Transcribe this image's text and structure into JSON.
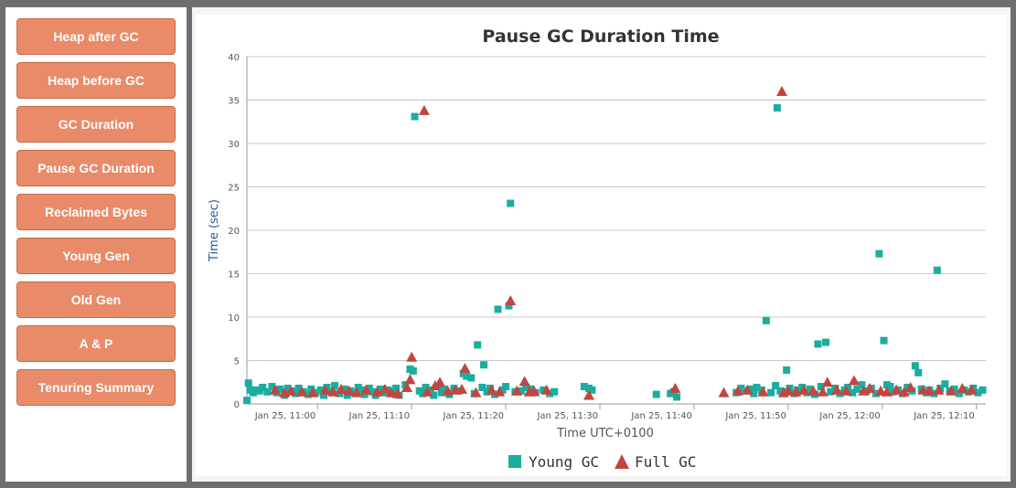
{
  "sidebar": {
    "items": [
      {
        "label": "Heap after GC"
      },
      {
        "label": "Heap before GC"
      },
      {
        "label": "GC Duration"
      },
      {
        "label": "Pause GC Duration"
      },
      {
        "label": "Reclaimed Bytes"
      },
      {
        "label": "Young Gen"
      },
      {
        "label": "Old Gen"
      },
      {
        "label": "A & P"
      },
      {
        "label": "Tenuring Summary"
      }
    ]
  },
  "colors": {
    "button": "#e98b68",
    "young": "#1aada0",
    "full": "#c2463f",
    "ylabel": "#2a5b8c"
  },
  "chart_data": {
    "type": "scatter",
    "title": "Pause GC Duration Time",
    "xlabel": "Time UTC+0100",
    "ylabel": "Time (sec)",
    "ylim": [
      0,
      40
    ],
    "yticks": [
      0,
      5,
      10,
      15,
      20,
      25,
      30,
      35,
      40
    ],
    "xlim": [
      "10:52:30",
      "12:11:00"
    ],
    "xticks": [
      {
        "t": "11:00",
        "label": "Jan 25, 11:00"
      },
      {
        "t": "11:10",
        "label": "Jan 25, 11:10"
      },
      {
        "t": "11:20",
        "label": "Jan 25, 11:20"
      },
      {
        "t": "11:30",
        "label": "Jan 25, 11:30"
      },
      {
        "t": "11:40",
        "label": "Jan 25, 11:40"
      },
      {
        "t": "11:50",
        "label": "Jan 25, 11:50"
      },
      {
        "t": "12:00",
        "label": "Jan 25, 12:00"
      },
      {
        "t": "12:10",
        "label": "Jan 25, 12:10"
      }
    ],
    "grid": true,
    "legend": "bottom",
    "series": [
      {
        "name": "Young GC",
        "marker": "square",
        "points": [
          [
            "10:52:30",
            0.4
          ],
          [
            "10:52:40",
            2.4
          ],
          [
            "10:52:50",
            1.6
          ],
          [
            "10:53:10",
            1.3
          ],
          [
            "10:53:30",
            1.6
          ],
          [
            "10:53:50",
            1.5
          ],
          [
            "10:54:10",
            1.9
          ],
          [
            "10:54:40",
            1.4
          ],
          [
            "10:55:10",
            2.0
          ],
          [
            "10:55:40",
            1.3
          ],
          [
            "10:56:00",
            1.7
          ],
          [
            "10:56:30",
            1.0
          ],
          [
            "10:56:50",
            1.8
          ],
          [
            "10:57:20",
            1.5
          ],
          [
            "10:57:40",
            1.2
          ],
          [
            "10:58:00",
            1.8
          ],
          [
            "10:58:30",
            1.4
          ],
          [
            "10:59:00",
            1.1
          ],
          [
            "10:59:20",
            1.7
          ],
          [
            "10:59:50",
            1.3
          ],
          [
            "11:00:20",
            1.6
          ],
          [
            "11:00:40",
            1.0
          ],
          [
            "11:01:00",
            1.9
          ],
          [
            "11:01:30",
            1.4
          ],
          [
            "11:01:50",
            2.1
          ],
          [
            "11:02:20",
            1.2
          ],
          [
            "11:02:50",
            1.7
          ],
          [
            "11:03:10",
            1.0
          ],
          [
            "11:03:30",
            1.5
          ],
          [
            "11:04:00",
            1.3
          ],
          [
            "11:04:20",
            1.9
          ],
          [
            "11:04:40",
            1.6
          ],
          [
            "11:05:00",
            1.1
          ],
          [
            "11:05:30",
            1.8
          ],
          [
            "11:05:50",
            1.4
          ],
          [
            "11:06:10",
            1.0
          ],
          [
            "11:06:40",
            1.7
          ],
          [
            "11:07:00",
            1.3
          ],
          [
            "11:07:30",
            1.6
          ],
          [
            "11:08:00",
            1.2
          ],
          [
            "11:08:20",
            1.8
          ],
          [
            "11:08:40",
            1.0
          ],
          [
            "11:09:20",
            2.2
          ],
          [
            "11:09:50",
            4.0
          ],
          [
            "11:10:10",
            3.8
          ],
          [
            "11:10:20",
            33.1
          ],
          [
            "11:10:50",
            1.5
          ],
          [
            "11:11:10",
            1.2
          ],
          [
            "11:11:30",
            1.9
          ],
          [
            "11:12:00",
            1.6
          ],
          [
            "11:12:20",
            1.0
          ],
          [
            "11:12:50",
            2.0
          ],
          [
            "11:13:10",
            1.3
          ],
          [
            "11:13:30",
            1.7
          ],
          [
            "11:14:00",
            1.1
          ],
          [
            "11:14:30",
            1.8
          ],
          [
            "11:15:00",
            1.5
          ],
          [
            "11:15:30",
            3.5
          ],
          [
            "11:15:50",
            3.2
          ],
          [
            "11:16:20",
            3.0
          ],
          [
            "11:16:40",
            1.2
          ],
          [
            "11:17:00",
            6.8
          ],
          [
            "11:17:30",
            1.9
          ],
          [
            "11:17:40",
            4.5
          ],
          [
            "11:18:00",
            1.4
          ],
          [
            "11:18:20",
            1.8
          ],
          [
            "11:18:50",
            1.1
          ],
          [
            "11:19:10",
            10.9
          ],
          [
            "11:19:40",
            1.6
          ],
          [
            "11:20:00",
            2.0
          ],
          [
            "11:20:20",
            11.3
          ],
          [
            "11:20:30",
            23.1
          ],
          [
            "11:21:00",
            1.4
          ],
          [
            "11:21:40",
            1.5
          ],
          [
            "11:22:10",
            1.9
          ],
          [
            "11:22:40",
            1.7
          ],
          [
            "11:23:10",
            1.3
          ],
          [
            "11:24:00",
            1.6
          ],
          [
            "11:24:40",
            1.2
          ],
          [
            "11:25:10",
            1.4
          ],
          [
            "11:28:20",
            2.0
          ],
          [
            "11:28:50",
            1.8
          ],
          [
            "11:29:10",
            1.6
          ],
          [
            "11:36:00",
            1.1
          ],
          [
            "11:37:30",
            1.2
          ],
          [
            "11:37:50",
            1.4
          ],
          [
            "11:38:10",
            0.8
          ],
          [
            "11:44:30",
            1.3
          ],
          [
            "11:45:00",
            1.8
          ],
          [
            "11:45:30",
            1.5
          ],
          [
            "11:46:00",
            1.7
          ],
          [
            "11:46:20",
            1.2
          ],
          [
            "11:46:40",
            1.9
          ],
          [
            "11:47:10",
            1.6
          ],
          [
            "11:47:40",
            9.6
          ],
          [
            "11:48:10",
            1.3
          ],
          [
            "11:48:40",
            2.1
          ],
          [
            "11:48:50",
            34.1
          ],
          [
            "11:49:10",
            1.5
          ],
          [
            "11:49:40",
            1.4
          ],
          [
            "11:49:50",
            3.9
          ],
          [
            "11:50:10",
            1.8
          ],
          [
            "11:50:40",
            1.2
          ],
          [
            "11:51:00",
            1.6
          ],
          [
            "11:51:30",
            1.9
          ],
          [
            "11:52:00",
            1.3
          ],
          [
            "11:52:20",
            1.7
          ],
          [
            "11:52:50",
            1.1
          ],
          [
            "11:53:10",
            6.9
          ],
          [
            "11:53:30",
            2.0
          ],
          [
            "11:54:00",
            7.1
          ],
          [
            "11:54:30",
            1.4
          ],
          [
            "11:55:00",
            1.8
          ],
          [
            "11:55:30",
            1.2
          ],
          [
            "11:56:00",
            1.6
          ],
          [
            "11:56:20",
            1.9
          ],
          [
            "11:56:50",
            1.3
          ],
          [
            "11:57:20",
            1.7
          ],
          [
            "11:57:50",
            2.2
          ],
          [
            "11:58:20",
            1.5
          ],
          [
            "11:58:50",
            1.8
          ],
          [
            "11:59:20",
            1.2
          ],
          [
            "11:59:40",
            17.3
          ],
          [
            "12:00:10",
            7.3
          ],
          [
            "12:00:30",
            2.2
          ],
          [
            "12:00:50",
            2.0
          ],
          [
            "12:01:10",
            1.4
          ],
          [
            "12:01:40",
            1.6
          ],
          [
            "12:02:10",
            1.2
          ],
          [
            "12:02:40",
            1.9
          ],
          [
            "12:03:10",
            1.5
          ],
          [
            "12:03:30",
            4.4
          ],
          [
            "12:03:50",
            3.6
          ],
          [
            "12:04:10",
            1.7
          ],
          [
            "12:04:40",
            1.3
          ],
          [
            "12:05:00",
            1.6
          ],
          [
            "12:05:30",
            1.2
          ],
          [
            "12:05:50",
            15.4
          ],
          [
            "12:06:10",
            1.8
          ],
          [
            "12:06:40",
            2.3
          ],
          [
            "12:07:10",
            1.5
          ],
          [
            "12:07:40",
            1.7
          ],
          [
            "12:08:10",
            1.2
          ],
          [
            "12:08:40",
            1.6
          ],
          [
            "12:09:10",
            1.4
          ],
          [
            "12:09:40",
            1.8
          ],
          [
            "12:10:10",
            1.3
          ],
          [
            "12:10:40",
            1.6
          ]
        ]
      },
      {
        "name": "Full GC",
        "marker": "triangle",
        "points": [
          [
            "10:55:30",
            1.6
          ],
          [
            "10:56:30",
            1.3
          ],
          [
            "10:57:10",
            1.5
          ],
          [
            "10:58:20",
            1.4
          ],
          [
            "10:59:30",
            1.3
          ],
          [
            "11:00:50",
            1.6
          ],
          [
            "11:01:40",
            1.4
          ],
          [
            "11:02:30",
            1.7
          ],
          [
            "11:03:20",
            1.5
          ],
          [
            "11:04:10",
            1.3
          ],
          [
            "11:05:10",
            1.6
          ],
          [
            "11:06:20",
            1.4
          ],
          [
            "11:07:10",
            1.7
          ],
          [
            "11:07:50",
            1.3
          ],
          [
            "11:08:30",
            1.2
          ],
          [
            "11:09:30",
            1.9
          ],
          [
            "11:09:50",
            2.8
          ],
          [
            "11:10:00",
            5.4
          ],
          [
            "11:11:20",
            33.8
          ],
          [
            "11:11:40",
            1.4
          ],
          [
            "11:12:30",
            2.1
          ],
          [
            "11:13:00",
            2.5
          ],
          [
            "11:13:50",
            1.5
          ],
          [
            "11:14:40",
            1.6
          ],
          [
            "11:15:20",
            1.7
          ],
          [
            "11:15:40",
            4.1
          ],
          [
            "11:16:50",
            1.3
          ],
          [
            "11:18:30",
            1.6
          ],
          [
            "11:19:20",
            1.4
          ],
          [
            "11:20:30",
            11.9
          ],
          [
            "11:21:10",
            1.5
          ],
          [
            "11:22:00",
            2.6
          ],
          [
            "11:22:30",
            1.4
          ],
          [
            "11:23:00",
            1.5
          ],
          [
            "11:24:20",
            1.6
          ],
          [
            "11:28:50",
            1.0
          ],
          [
            "11:38:00",
            1.8
          ],
          [
            "11:43:10",
            1.3
          ],
          [
            "11:44:40",
            1.5
          ],
          [
            "11:45:40",
            1.6
          ],
          [
            "11:47:20",
            1.4
          ],
          [
            "11:49:20",
            36.0
          ],
          [
            "11:49:30",
            1.3
          ],
          [
            "11:50:00",
            1.5
          ],
          [
            "11:50:50",
            1.4
          ],
          [
            "11:51:40",
            1.6
          ],
          [
            "11:52:40",
            1.5
          ],
          [
            "11:53:40",
            1.4
          ],
          [
            "11:54:10",
            2.5
          ],
          [
            "11:55:10",
            1.6
          ],
          [
            "11:56:10",
            1.5
          ],
          [
            "11:57:00",
            2.7
          ],
          [
            "11:58:00",
            1.5
          ],
          [
            "11:58:40",
            1.8
          ],
          [
            "11:59:50",
            1.5
          ],
          [
            "12:00:30",
            1.4
          ],
          [
            "12:01:30",
            1.6
          ],
          [
            "12:02:20",
            1.4
          ],
          [
            "12:03:00",
            1.9
          ],
          [
            "12:04:20",
            1.6
          ],
          [
            "12:05:00",
            1.5
          ],
          [
            "12:06:00",
            1.6
          ],
          [
            "12:07:20",
            1.5
          ],
          [
            "12:08:30",
            1.8
          ],
          [
            "12:09:30",
            1.6
          ]
        ]
      }
    ]
  }
}
